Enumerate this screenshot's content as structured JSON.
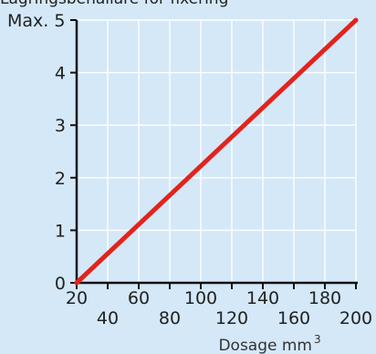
{
  "chart_data": {
    "type": "line",
    "title": "Lagringsbehållare för fixering",
    "xlabel": "Dosage mm",
    "xlabel_superscript": "3",
    "ylabel": "",
    "y_top_label": "Max. 5",
    "xlim": [
      20,
      200
    ],
    "ylim": [
      0,
      5
    ],
    "grid": true,
    "x_ticks_upper": [
      20,
      60,
      100,
      140,
      180
    ],
    "x_ticks_lower": [
      40,
      80,
      120,
      160,
      200
    ],
    "y_ticks": [
      0,
      1,
      2,
      3,
      4
    ],
    "series": [
      {
        "x": [
          20,
          200
        ],
        "y": [
          0,
          5
        ],
        "color": "#e3231c"
      }
    ]
  }
}
